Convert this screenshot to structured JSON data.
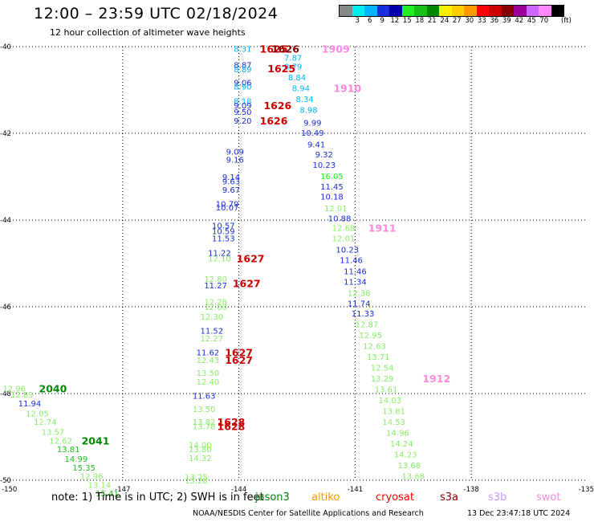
{
  "header": {
    "title": "12:00 – 23:59 UTC 02/18/2024",
    "subtitle": "12 hour collection of altimeter wave heights"
  },
  "legend": {
    "unit": "(ft)",
    "bins": [
      {
        "label": "",
        "color": "#888888"
      },
      {
        "label": "3",
        "color": "#00eeee"
      },
      {
        "label": "6",
        "color": "#00b4ff"
      },
      {
        "label": "9",
        "color": "#1a2edc"
      },
      {
        "label": "12",
        "color": "#0000aa"
      },
      {
        "label": "15",
        "color": "#22ee22"
      },
      {
        "label": "18",
        "color": "#18c018"
      },
      {
        "label": "21",
        "color": "#008800"
      },
      {
        "label": "24",
        "color": "#ffee00"
      },
      {
        "label": "27",
        "color": "#ffcc00"
      },
      {
        "label": "30",
        "color": "#ff9900"
      },
      {
        "label": "33",
        "color": "#ff0000"
      },
      {
        "label": "36",
        "color": "#cc0000"
      },
      {
        "label": "39",
        "color": "#880000"
      },
      {
        "label": "42",
        "color": "#990099"
      },
      {
        "label": "45",
        "color": "#cc66ff"
      },
      {
        "label": "70",
        "color": "#ff88ff"
      },
      {
        "label": "",
        "color": "#000000"
      }
    ]
  },
  "footer": {
    "note": "note:  1) Time is in UTC; 2) SWH is in feet",
    "credit": "NOAA/NESDIS Center for Satellite Applications and Research",
    "generated": "13 Dec 23:47:18 UTC 2024",
    "missions": [
      {
        "name": "jason3",
        "color": "#008800"
      },
      {
        "name": "altiko",
        "color": "#ff9900"
      },
      {
        "name": "cryosat",
        "color": "#ff0000"
      },
      {
        "name": "s3a",
        "color": "#880000"
      },
      {
        "name": "s3b",
        "color": "#cc99ff"
      },
      {
        "name": "swot",
        "color": "#ff88dd"
      }
    ]
  },
  "chart_data": {
    "type": "scatter",
    "xlim": [
      -150,
      -135
    ],
    "ylim": [
      -50,
      -40
    ],
    "x_ticks": [
      "-150",
      "-147",
      "-144",
      "-141",
      "-138",
      "-135"
    ],
    "y_ticks": [
      "-40",
      "-42",
      "-44",
      "-46",
      "-48",
      "-50"
    ],
    "grid": true,
    "points": [
      {
        "lon": -143.9,
        "lat": -40.05,
        "text": "8.31",
        "color": "#00b4ff"
      },
      {
        "lon": -142.6,
        "lat": -40.25,
        "text": "7.87",
        "color": "#00b4ff"
      },
      {
        "lon": -142.6,
        "lat": -40.45,
        "text": "8.79",
        "color": "#00b4ff"
      },
      {
        "lon": -143.9,
        "lat": -40.42,
        "text": "8.87",
        "color": "#1a2edc"
      },
      {
        "lon": -143.9,
        "lat": -40.52,
        "text": "8.89",
        "color": "#00b4ff"
      },
      {
        "lon": -142.5,
        "lat": -40.7,
        "text": "8.84",
        "color": "#00b4ff"
      },
      {
        "lon": -143.9,
        "lat": -40.82,
        "text": "9.06",
        "color": "#1a2edc"
      },
      {
        "lon": -143.9,
        "lat": -40.92,
        "text": "8.90",
        "color": "#00b4ff"
      },
      {
        "lon": -142.4,
        "lat": -40.95,
        "text": "8.94",
        "color": "#00b4ff"
      },
      {
        "lon": -142.3,
        "lat": -41.2,
        "text": "8.34",
        "color": "#00b4ff"
      },
      {
        "lon": -143.9,
        "lat": -41.25,
        "text": "8.18",
        "color": "#00b4ff"
      },
      {
        "lon": -143.9,
        "lat": -41.35,
        "text": "9.09",
        "color": "#1a2edc"
      },
      {
        "lon": -142.2,
        "lat": -41.45,
        "text": "8.98",
        "color": "#00b4ff"
      },
      {
        "lon": -143.9,
        "lat": -41.5,
        "text": "9.50",
        "color": "#1a2edc"
      },
      {
        "lon": -143.9,
        "lat": -41.7,
        "text": "9.20",
        "color": "#1a2edc"
      },
      {
        "lon": -142.1,
        "lat": -41.75,
        "text": "9.99",
        "color": "#1a2edc"
      },
      {
        "lon": -142.1,
        "lat": -41.98,
        "text": "10.49",
        "color": "#1a2edc"
      },
      {
        "lon": -142.0,
        "lat": -42.25,
        "text": "9.41",
        "color": "#1a2edc"
      },
      {
        "lon": -144.1,
        "lat": -42.42,
        "text": "9.09",
        "color": "#1a2edc"
      },
      {
        "lon": -141.8,
        "lat": -42.48,
        "text": "9.32",
        "color": "#1a2edc"
      },
      {
        "lon": -144.1,
        "lat": -42.6,
        "text": "9.16",
        "color": "#1a2edc"
      },
      {
        "lon": -141.8,
        "lat": -42.72,
        "text": "10.23",
        "color": "#1a2edc"
      },
      {
        "lon": -141.6,
        "lat": -42.98,
        "text": "16.05",
        "color": "#22ee22"
      },
      {
        "lon": -144.2,
        "lat": -43.0,
        "text": "9.14",
        "color": "#1a2edc"
      },
      {
        "lon": -144.2,
        "lat": -43.1,
        "text": "9.63",
        "color": "#1a2edc"
      },
      {
        "lon": -141.6,
        "lat": -43.22,
        "text": "11.45",
        "color": "#1a2edc"
      },
      {
        "lon": -144.2,
        "lat": -43.3,
        "text": "9.67",
        "color": "#1a2edc"
      },
      {
        "lon": -141.6,
        "lat": -43.45,
        "text": "10.18",
        "color": "#1a2edc"
      },
      {
        "lon": -144.3,
        "lat": -43.62,
        "text": "10.79",
        "color": "#1a2edc"
      },
      {
        "lon": -144.3,
        "lat": -43.7,
        "text": "10.07",
        "color": "#1a2edc"
      },
      {
        "lon": -141.5,
        "lat": -43.72,
        "text": "12.01",
        "color": "#88ee66"
      },
      {
        "lon": -141.4,
        "lat": -43.95,
        "text": "10.88",
        "color": "#1a2edc"
      },
      {
        "lon": -144.4,
        "lat": -44.12,
        "text": "10.57",
        "color": "#1a2edc"
      },
      {
        "lon": -141.3,
        "lat": -44.18,
        "text": "12.68",
        "color": "#88ee66"
      },
      {
        "lon": -144.4,
        "lat": -44.25,
        "text": "10.59",
        "color": "#1a2edc"
      },
      {
        "lon": -141.3,
        "lat": -44.42,
        "text": "12.01",
        "color": "#88ee66"
      },
      {
        "lon": -144.4,
        "lat": -44.42,
        "text": "11.53",
        "color": "#1a2edc"
      },
      {
        "lon": -141.2,
        "lat": -44.68,
        "text": "10.23",
        "color": "#1a2edc"
      },
      {
        "lon": -144.5,
        "lat": -44.75,
        "text": "11.22",
        "color": "#1a2edc"
      },
      {
        "lon": -144.5,
        "lat": -44.88,
        "text": "12.10",
        "color": "#88ee66"
      },
      {
        "lon": -141.1,
        "lat": -44.92,
        "text": "11.46",
        "color": "#1a2edc"
      },
      {
        "lon": -141.0,
        "lat": -45.18,
        "text": "11.46",
        "color": "#1a2edc"
      },
      {
        "lon": -144.6,
        "lat": -45.35,
        "text": "12.80",
        "color": "#88ee66"
      },
      {
        "lon": -141.0,
        "lat": -45.42,
        "text": "11.34",
        "color": "#1a2edc"
      },
      {
        "lon": -144.6,
        "lat": -45.5,
        "text": "11.27",
        "color": "#1a2edc"
      },
      {
        "lon": -140.9,
        "lat": -45.68,
        "text": "12.38",
        "color": "#88ee66"
      },
      {
        "lon": -144.6,
        "lat": -45.88,
        "text": "12.28",
        "color": "#88ee66"
      },
      {
        "lon": -140.9,
        "lat": -45.92,
        "text": "11.74",
        "color": "#1a2edc"
      },
      {
        "lon": -144.6,
        "lat": -46.0,
        "text": "12.00",
        "color": "#88ee66"
      },
      {
        "lon": -140.8,
        "lat": -46.15,
        "text": "11.33",
        "color": "#1a2edc"
      },
      {
        "lon": -144.7,
        "lat": -46.22,
        "text": "12.30",
        "color": "#88ee66"
      },
      {
        "lon": -140.7,
        "lat": -46.4,
        "text": "12.87",
        "color": "#88ee66"
      },
      {
        "lon": -144.7,
        "lat": -46.55,
        "text": "11.52",
        "color": "#1a2edc"
      },
      {
        "lon": -140.6,
        "lat": -46.65,
        "text": "12.95",
        "color": "#88ee66"
      },
      {
        "lon": -144.7,
        "lat": -46.72,
        "text": "12.27",
        "color": "#88ee66"
      },
      {
        "lon": -140.5,
        "lat": -46.9,
        "text": "12.63",
        "color": "#88ee66"
      },
      {
        "lon": -144.8,
        "lat": -47.05,
        "text": "11.62",
        "color": "#1a2edc"
      },
      {
        "lon": -140.4,
        "lat": -47.15,
        "text": "13.71",
        "color": "#88ee66"
      },
      {
        "lon": -144.8,
        "lat": -47.22,
        "text": "12.43",
        "color": "#88ee66"
      },
      {
        "lon": -140.3,
        "lat": -47.4,
        "text": "12.54",
        "color": "#88ee66"
      },
      {
        "lon": -144.8,
        "lat": -47.52,
        "text": "13.50",
        "color": "#88ee66"
      },
      {
        "lon": -140.3,
        "lat": -47.65,
        "text": "13.29",
        "color": "#88ee66"
      },
      {
        "lon": -144.8,
        "lat": -47.72,
        "text": "12.40",
        "color": "#88ee66"
      },
      {
        "lon": -140.2,
        "lat": -47.9,
        "text": "13.61",
        "color": "#88ee66"
      },
      {
        "lon": -144.9,
        "lat": -48.05,
        "text": "11.63",
        "color": "#1a2edc"
      },
      {
        "lon": -140.1,
        "lat": -48.15,
        "text": "14.03",
        "color": "#88ee66"
      },
      {
        "lon": -144.9,
        "lat": -48.35,
        "text": "13.50",
        "color": "#88ee66"
      },
      {
        "lon": -140.0,
        "lat": -48.4,
        "text": "13.81",
        "color": "#88ee66"
      },
      {
        "lon": -144.9,
        "lat": -48.65,
        "text": "13.82",
        "color": "#88ee66"
      },
      {
        "lon": -140.0,
        "lat": -48.65,
        "text": "14.53",
        "color": "#88ee66"
      },
      {
        "lon": -144.9,
        "lat": -48.75,
        "text": "13.78",
        "color": "#88ee66"
      },
      {
        "lon": -139.9,
        "lat": -48.9,
        "text": "14.96",
        "color": "#88ee66"
      },
      {
        "lon": -139.8,
        "lat": -49.15,
        "text": "14.24",
        "color": "#88ee66"
      },
      {
        "lon": -145.0,
        "lat": -49.18,
        "text": "14.00",
        "color": "#88ee66"
      },
      {
        "lon": -145.0,
        "lat": -49.28,
        "text": "13.80",
        "color": "#88ee66"
      },
      {
        "lon": -139.7,
        "lat": -49.4,
        "text": "14.23",
        "color": "#88ee66"
      },
      {
        "lon": -145.0,
        "lat": -49.48,
        "text": "14.32",
        "color": "#88ee66"
      },
      {
        "lon": -139.6,
        "lat": -49.65,
        "text": "13.68",
        "color": "#88ee66"
      },
      {
        "lon": -139.5,
        "lat": -49.9,
        "text": "13.68",
        "color": "#88ee66"
      },
      {
        "lon": -145.1,
        "lat": -49.92,
        "text": "13.25",
        "color": "#88ee66"
      },
      {
        "lon": -145.1,
        "lat": -50.0,
        "text": "13.28",
        "color": "#88ee66"
      },
      {
        "lon": -149.8,
        "lat": -47.88,
        "text": "12.96",
        "color": "#88ee66"
      },
      {
        "lon": -149.6,
        "lat": -48.02,
        "text": "12.89",
        "color": "#88ee66"
      },
      {
        "lon": -149.4,
        "lat": -48.22,
        "text": "11.94",
        "color": "#1a2edc"
      },
      {
        "lon": -149.2,
        "lat": -48.45,
        "text": "12.05",
        "color": "#88ee66"
      },
      {
        "lon": -149.0,
        "lat": -48.65,
        "text": "12.74",
        "color": "#88ee66"
      },
      {
        "lon": -148.8,
        "lat": -48.88,
        "text": "13.57",
        "color": "#88ee66"
      },
      {
        "lon": -148.6,
        "lat": -49.08,
        "text": "12.62",
        "color": "#88ee66"
      },
      {
        "lon": -148.4,
        "lat": -49.28,
        "text": "13.81",
        "color": "#18c018"
      },
      {
        "lon": -148.2,
        "lat": -49.5,
        "text": "14.99",
        "color": "#18c018"
      },
      {
        "lon": -148.0,
        "lat": -49.7,
        "text": "15.35",
        "color": "#18c018"
      },
      {
        "lon": -147.8,
        "lat": -49.9,
        "text": "12.96",
        "color": "#88ee66"
      },
      {
        "lon": -147.6,
        "lat": -50.1,
        "text": "13.14",
        "color": "#88ee66"
      },
      {
        "lon": -147.4,
        "lat": -50.3,
        "text": "15.41",
        "color": "#18c018"
      }
    ],
    "annotations": [
      {
        "lon": -143.1,
        "lat": -40.05,
        "text": "1625",
        "color": "#cc0000"
      },
      {
        "lon": -142.8,
        "lat": -40.05,
        "text": "1626",
        "color": "#880000"
      },
      {
        "lon": -141.5,
        "lat": -40.05,
        "text": "1909",
        "color": "#ff88dd"
      },
      {
        "lon": -142.9,
        "lat": -40.5,
        "text": "1625",
        "color": "#cc0000"
      },
      {
        "lon": -141.2,
        "lat": -40.95,
        "text": "1910",
        "color": "#ff88dd"
      },
      {
        "lon": -143.0,
        "lat": -41.35,
        "text": "1626",
        "color": "#cc0000"
      },
      {
        "lon": -143.1,
        "lat": -41.7,
        "text": "1626",
        "color": "#cc0000"
      },
      {
        "lon": -140.3,
        "lat": -44.18,
        "text": "1911",
        "color": "#ff88dd"
      },
      {
        "lon": -143.7,
        "lat": -44.88,
        "text": "1627",
        "color": "#cc0000"
      },
      {
        "lon": -143.8,
        "lat": -45.45,
        "text": "1627",
        "color": "#cc0000"
      },
      {
        "lon": -144.0,
        "lat": -47.05,
        "text": "1627",
        "color": "#cc0000"
      },
      {
        "lon": -144.0,
        "lat": -47.22,
        "text": "1627",
        "color": "#cc0000"
      },
      {
        "lon": -138.9,
        "lat": -47.65,
        "text": "1912",
        "color": "#ff88dd"
      },
      {
        "lon": -148.8,
        "lat": -47.88,
        "text": "2040",
        "color": "#008800"
      },
      {
        "lon": -144.2,
        "lat": -48.65,
        "text": "1628",
        "color": "#cc0000"
      },
      {
        "lon": -144.2,
        "lat": -48.75,
        "text": "1628",
        "color": "#cc0000"
      },
      {
        "lon": -147.7,
        "lat": -49.08,
        "text": "2041",
        "color": "#008800"
      }
    ]
  }
}
